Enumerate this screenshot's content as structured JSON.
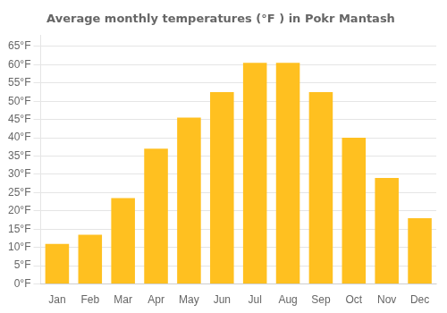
{
  "chart_data": {
    "type": "bar",
    "title": "Average monthly temperatures (°F ) in Pokr Mantash",
    "categories": [
      "Jan",
      "Feb",
      "Mar",
      "Apr",
      "May",
      "Jun",
      "Jul",
      "Aug",
      "Sep",
      "Oct",
      "Nov",
      "Dec"
    ],
    "values": [
      11,
      13.5,
      23.5,
      37,
      45.5,
      52.5,
      60.5,
      60.5,
      52.5,
      40,
      29,
      18
    ],
    "color": "#FFC020",
    "ylim": [
      0,
      68
    ],
    "yticks": [
      {
        "value": 0,
        "label": "0°F"
      },
      {
        "value": 5,
        "label": "5°F"
      },
      {
        "value": 10,
        "label": "10°F"
      },
      {
        "value": 15,
        "label": "15°F"
      },
      {
        "value": 20,
        "label": "20°F"
      },
      {
        "value": 25,
        "label": "25°F"
      },
      {
        "value": 30,
        "label": "30°F"
      },
      {
        "value": 35,
        "label": "35°F"
      },
      {
        "value": 40,
        "label": "40°F"
      },
      {
        "value": 45,
        "label": "45°F"
      },
      {
        "value": 50,
        "label": "50°F"
      },
      {
        "value": 55,
        "label": "55°F"
      },
      {
        "value": 60,
        "label": "60°F"
      },
      {
        "value": 65,
        "label": "65°F"
      }
    ],
    "grid": true
  }
}
